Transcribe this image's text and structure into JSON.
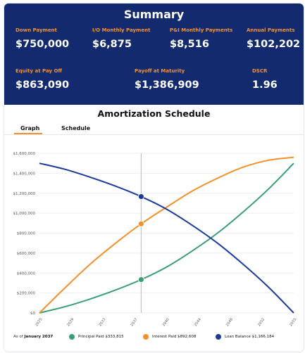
{
  "summary": {
    "title": "Summary",
    "stats": [
      {
        "label": "Down Payment",
        "value": "$750,000"
      },
      {
        "label": "I/O Monthly Payment",
        "value": "$6,875"
      },
      {
        "label": "P&I Monthly Payments",
        "value": "$8,516"
      },
      {
        "label": "Annual Payments",
        "value": "$102,202"
      },
      {
        "label": "Equity at Pay Off",
        "value": "$863,090"
      },
      {
        "label": "Payoff at Maturity",
        "value": "$1,386,909"
      },
      {
        "label": "DSCR",
        "value": "1.96"
      }
    ]
  },
  "amortization": {
    "title": "Amortization Schedule",
    "tabs": [
      {
        "label": "Graph",
        "active": true
      },
      {
        "label": "Schedule",
        "active": false
      }
    ]
  },
  "legend": {
    "as_of_prefix": "As of",
    "as_of_date": "January 2037",
    "items": [
      {
        "label": "Principal Paid $333,815",
        "color": "#3a9e74"
      },
      {
        "label": "Interest Paid $892,608",
        "color": "#f4902a"
      },
      {
        "label": "Loan Balance $1,166,184",
        "color": "#1b3a9a"
      }
    ]
  },
  "colors": {
    "header_bg": "#142a6e",
    "accent": "#f4902a",
    "principal": "#3a9e74",
    "interest": "#f4902a",
    "balance": "#1b3a9a"
  },
  "chart_data": {
    "type": "line",
    "xlim": [
      2025,
      2055
    ],
    "ylim": [
      0,
      1600000
    ],
    "x_ticks": [
      "2025",
      "2029",
      "2033",
      "2037",
      "2040",
      "2044",
      "2048",
      "2052",
      "2055"
    ],
    "y_ticks": [
      "$0",
      "$200,000",
      "$400,000",
      "$600,000",
      "$800,000",
      "$1,000,000",
      "$1,200,000",
      "$1,400,000",
      "$1,600,000"
    ],
    "crosshair_x": 2037,
    "grid": true,
    "series": [
      {
        "name": "Principal Paid",
        "color": "#3a9e74",
        "x": [
          2025,
          2028,
          2031,
          2034,
          2037,
          2040,
          2043,
          2046,
          2049,
          2052,
          2055
        ],
        "values": [
          0,
          62000,
          140000,
          230000,
          333815,
          460000,
          620000,
          800000,
          1010000,
          1240000,
          1500000
        ]
      },
      {
        "name": "Interest Paid",
        "color": "#f4902a",
        "x": [
          2025,
          2028,
          2031,
          2034,
          2037,
          2040,
          2043,
          2046,
          2049,
          2052,
          2055
        ],
        "values": [
          0,
          250000,
          490000,
          700000,
          892608,
          1060000,
          1220000,
          1350000,
          1460000,
          1530000,
          1560000
        ]
      },
      {
        "name": "Loan Balance",
        "color": "#1b3a9a",
        "x": [
          2025,
          2028,
          2031,
          2034,
          2037,
          2040,
          2043,
          2046,
          2049,
          2052,
          2055
        ],
        "values": [
          1500000,
          1440000,
          1360000,
          1270000,
          1166184,
          1040000,
          880000,
          700000,
          490000,
          260000,
          0
        ]
      }
    ],
    "markers": [
      {
        "series": "Principal Paid",
        "x": 2037,
        "y": 333815
      },
      {
        "series": "Interest Paid",
        "x": 2037,
        "y": 892608
      },
      {
        "series": "Loan Balance",
        "x": 2037,
        "y": 1166184
      }
    ]
  }
}
